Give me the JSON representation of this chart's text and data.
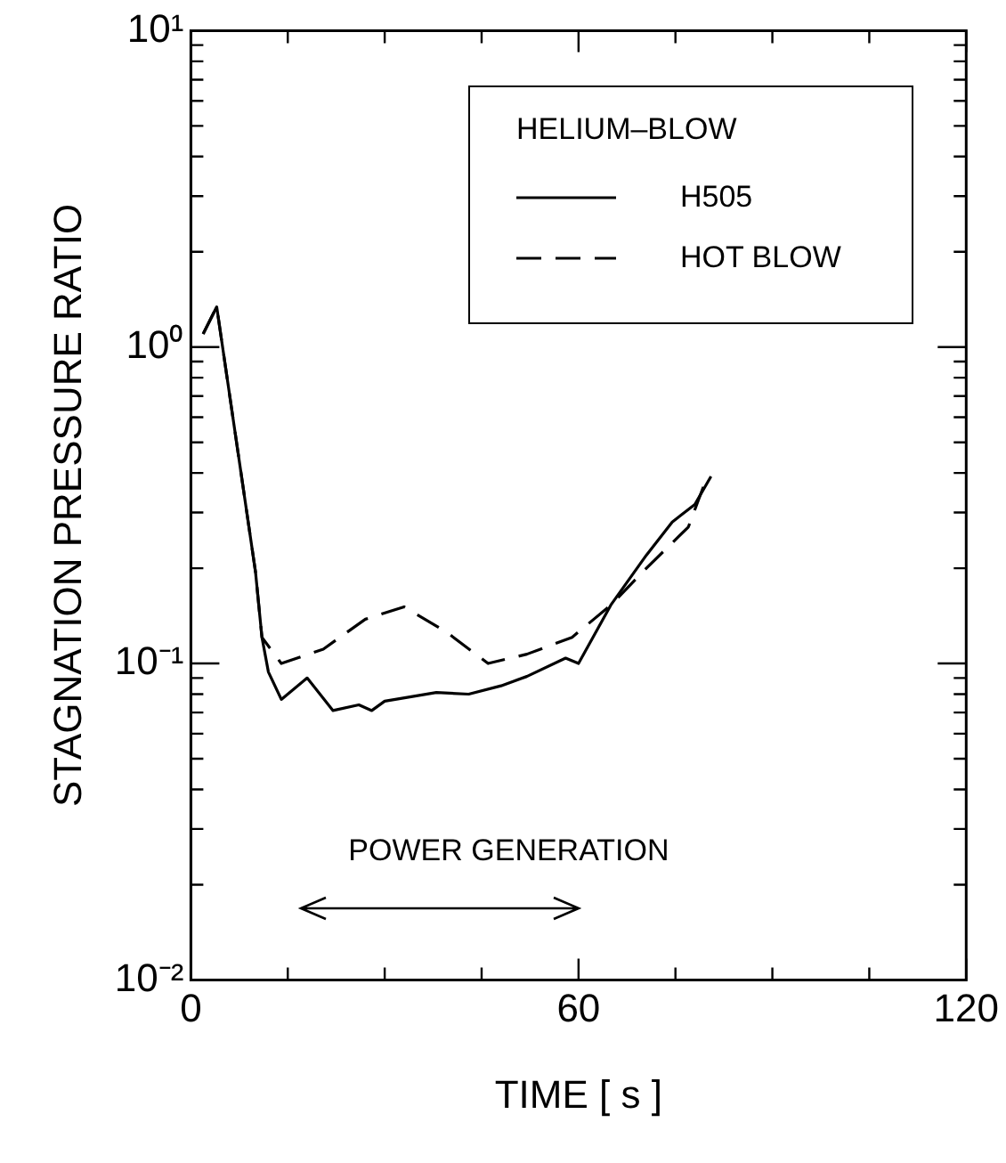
{
  "chart_data": {
    "type": "line",
    "xlabel": "TIME [ s ]",
    "ylabel": "STAGNATION PRESSURE RATIO",
    "legend_title": "HELIUM–BLOW",
    "legend": "top right",
    "grid": false,
    "marker": "none",
    "log": "y",
    "xlim": [
      0,
      120
    ],
    "xticks": [
      0,
      {
        "value": 15,
        "label": null
      },
      {
        "value": 30,
        "label": null
      },
      {
        "value": 45,
        "label": null
      },
      60,
      {
        "value": 75,
        "label": null
      },
      {
        "value": 90,
        "label": null
      },
      {
        "value": 105,
        "label": null
      },
      120
    ],
    "ylim": [
      0.01,
      10
    ],
    "yticks": [
      {
        "value": 0.01,
        "label": "10⁻²"
      },
      {
        "value": 0.02,
        "label": null
      },
      {
        "value": 0.03,
        "label": null
      },
      {
        "value": 0.04,
        "label": null
      },
      {
        "value": 0.05,
        "label": null
      },
      {
        "value": 0.06,
        "label": null
      },
      {
        "value": 0.07,
        "label": null
      },
      {
        "value": 0.08,
        "label": null
      },
      {
        "value": 0.09,
        "label": null
      },
      {
        "value": 0.1,
        "label": "10⁻¹"
      },
      {
        "value": 0.2,
        "label": null
      },
      {
        "value": 0.3,
        "label": null
      },
      {
        "value": 0.4,
        "label": null
      },
      {
        "value": 0.5,
        "label": null
      },
      {
        "value": 0.6,
        "label": null
      },
      {
        "value": 0.7,
        "label": null
      },
      {
        "value": 0.8,
        "label": null
      },
      {
        "value": 0.9,
        "label": null
      },
      {
        "value": 1,
        "label": "10⁰"
      },
      {
        "value": 2,
        "label": null
      },
      {
        "value": 3,
        "label": null
      },
      {
        "value": 4,
        "label": null
      },
      {
        "value": 5,
        "label": null
      },
      {
        "value": 6,
        "label": null
      },
      {
        "value": 7,
        "label": null
      },
      {
        "value": 8,
        "label": null
      },
      {
        "value": 9,
        "label": null
      },
      {
        "value": 10,
        "label": "10¹"
      }
    ],
    "series": [
      {
        "name": "H505",
        "color": "#000000",
        "line_style": "solid",
        "x": [
          1.9,
          4,
          10,
          11,
          12,
          14,
          18,
          22,
          26,
          28,
          30,
          38,
          43,
          48,
          52,
          58,
          60,
          65,
          70.5,
          74.5,
          78,
          80.5
        ],
        "values": [
          1.1,
          1.34,
          0.195,
          0.121,
          0.094,
          0.077,
          0.09,
          0.071,
          0.074,
          0.071,
          0.076,
          0.081,
          0.08,
          0.085,
          0.091,
          0.104,
          0.1,
          0.153,
          0.22,
          0.28,
          0.318,
          0.39
        ]
      },
      {
        "name": "HOT BLOW",
        "color": "#000000",
        "line_style": "dashed",
        "x": [
          1.9,
          4,
          10,
          11,
          14,
          20.5,
          27,
          33,
          39.5,
          46,
          52,
          59,
          65,
          70.5,
          77,
          79.5
        ],
        "values": [
          1.1,
          1.34,
          0.195,
          0.121,
          0.1,
          0.111,
          0.138,
          0.151,
          0.126,
          0.1,
          0.107,
          0.121,
          0.153,
          0.2,
          0.27,
          0.37
        ]
      }
    ],
    "annotations": [
      "POWER GENERATION"
    ]
  }
}
